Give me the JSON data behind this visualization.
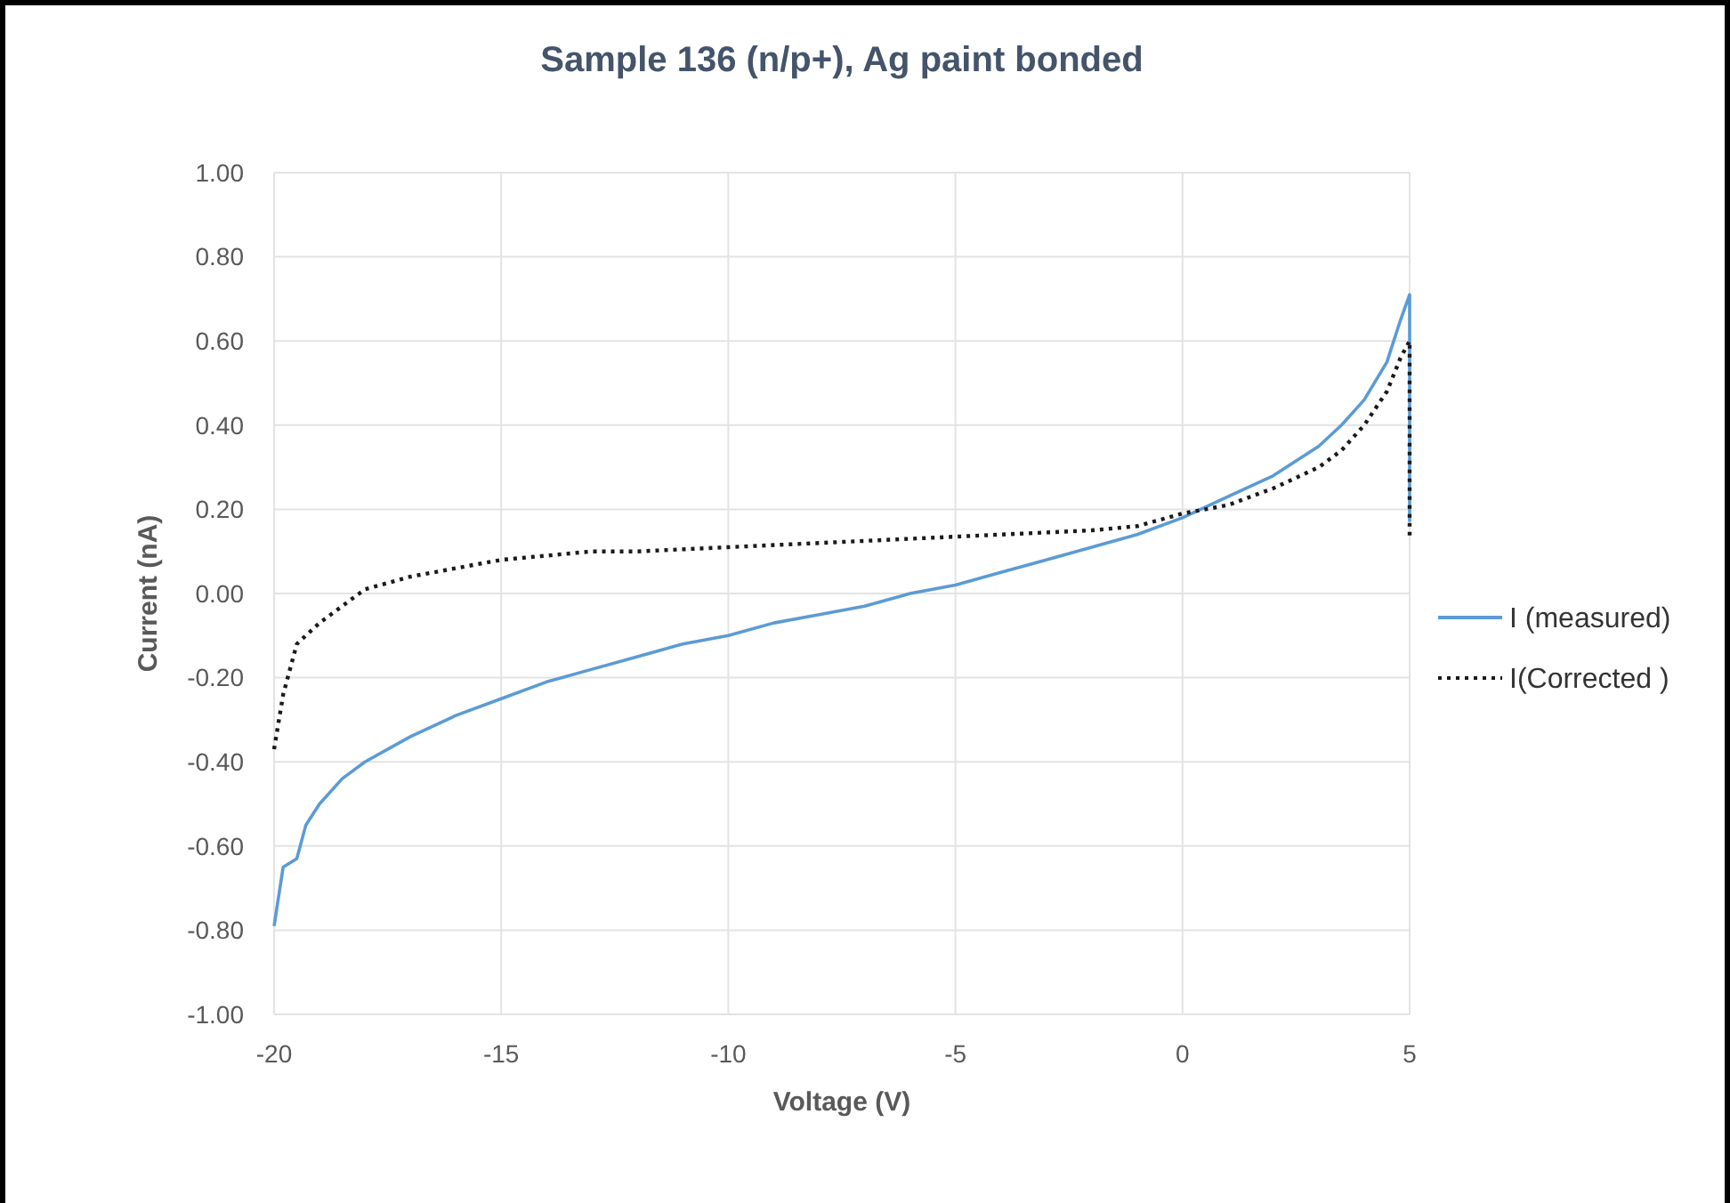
{
  "chart_data": {
    "type": "line",
    "title": "Sample 136 (n/p+), Ag paint bonded",
    "xlabel": "Voltage (V)",
    "ylabel": "Current (nA)",
    "xlim": [
      -20,
      5
    ],
    "xticks": [
      -20,
      -15,
      -10,
      -5,
      0,
      5
    ],
    "ylim": [
      -1,
      1
    ],
    "yticks": [
      {
        "value": -1,
        "label": "-1.00"
      },
      {
        "value": -0.8,
        "label": "-0.80"
      },
      {
        "value": -0.6,
        "label": "-0.60"
      },
      {
        "value": -0.4,
        "label": "-0.40"
      },
      {
        "value": -0.2,
        "label": "-0.20"
      },
      {
        "value": 0,
        "label": "0.00"
      },
      {
        "value": 0.2,
        "label": "0.20"
      },
      {
        "value": 0.4,
        "label": "0.40"
      },
      {
        "value": 0.6,
        "label": "0.60"
      },
      {
        "value": 0.8,
        "label": "0.80"
      },
      {
        "value": 1,
        "label": "1.00"
      }
    ],
    "grid": true,
    "legend": "right",
    "marker": "none",
    "series": [
      {
        "name": "I (measured)",
        "color": "#5b9bd5",
        "line_style": "solid",
        "x": [
          -20,
          -19.8,
          -19.5,
          -19.3,
          -19,
          -18.5,
          -18,
          -17,
          -16,
          -15,
          -14,
          -13,
          -12,
          -11,
          -10,
          -9,
          -8,
          -7,
          -6,
          -5,
          -4,
          -3,
          -2,
          -1,
          0,
          1,
          2,
          3,
          3.5,
          4,
          4.5,
          4.8,
          5,
          5
        ],
        "values": [
          -0.79,
          -0.65,
          -0.63,
          -0.55,
          -0.5,
          -0.44,
          -0.4,
          -0.34,
          -0.29,
          -0.25,
          -0.21,
          -0.18,
          -0.15,
          -0.12,
          -0.1,
          -0.07,
          -0.05,
          -0.03,
          0,
          0.02,
          0.05,
          0.08,
          0.11,
          0.14,
          0.18,
          0.23,
          0.28,
          0.35,
          0.4,
          0.46,
          0.55,
          0.65,
          0.71,
          0.17
        ]
      },
      {
        "name": "I(Corrected )",
        "color": "#1a1a1a",
        "line_style": "dotted",
        "x": [
          -20,
          -19.8,
          -19.5,
          -19,
          -18.5,
          -18,
          -17,
          -16,
          -15,
          -14,
          -13,
          -12,
          -10,
          -8,
          -6,
          -4,
          -2,
          -1,
          0,
          1,
          2,
          3,
          3.5,
          4,
          4.5,
          4.8,
          5,
          5
        ],
        "values": [
          -0.37,
          -0.24,
          -0.12,
          -0.07,
          -0.03,
          0.01,
          0.04,
          0.06,
          0.08,
          0.09,
          0.1,
          0.1,
          0.11,
          0.12,
          0.13,
          0.14,
          0.15,
          0.16,
          0.19,
          0.21,
          0.25,
          0.3,
          0.34,
          0.4,
          0.48,
          0.56,
          0.6,
          0.13
        ]
      }
    ]
  }
}
